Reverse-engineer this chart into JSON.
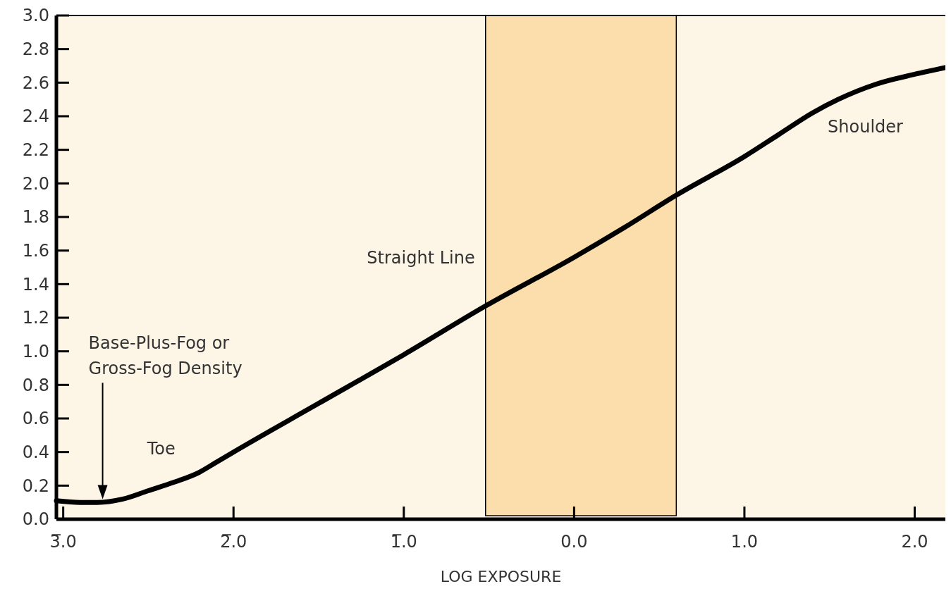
{
  "chart_data": {
    "type": "line",
    "xlabel": "LOG EXPOSURE",
    "x": [
      -3.04,
      -2.9,
      -2.8,
      -2.65,
      -2.5,
      -2.35,
      -2.2,
      -2.1,
      -2.0,
      -1.5,
      -1.0,
      -0.52,
      0.0,
      0.3,
      0.6,
      1.0,
      1.2,
      1.4,
      1.55,
      1.77,
      2.0,
      2.18
    ],
    "series": [
      {
        "color": "#000000",
        "values": [
          0.11,
          0.1,
          0.1,
          0.12,
          0.17,
          0.22,
          0.28,
          0.34,
          0.4,
          0.69,
          0.98,
          1.27,
          1.56,
          1.74,
          1.93,
          2.16,
          2.29,
          2.42,
          2.5,
          2.59,
          2.65,
          2.69
        ]
      }
    ],
    "xlim": [
      -3.04,
      2.18
    ],
    "ylim": [
      0,
      3
    ],
    "xticks": [
      {
        "value": -3,
        "label": "3̅.0"
      },
      {
        "value": -2,
        "label": "2̅.0"
      },
      {
        "value": -1,
        "label": "1̅.0"
      },
      {
        "value": 0,
        "label": "0.0"
      },
      {
        "value": 1,
        "label": "1.0"
      },
      {
        "value": 2,
        "label": "2.0"
      }
    ],
    "yticks": [
      {
        "value": 0,
        "label": "0.0"
      },
      0.2,
      0.4,
      0.6,
      0.8,
      {
        "value": 1,
        "label": "1.0"
      },
      1.2,
      1.4,
      1.6,
      1.8,
      {
        "value": 2,
        "label": "2.0"
      },
      2.2,
      2.4,
      2.6,
      2.8,
      {
        "value": 3,
        "label": "3.0"
      }
    ],
    "bands": [
      {
        "axis": "x",
        "from": -0.52,
        "to": 0.6,
        "color": "#fbdeab"
      }
    ],
    "annotations": [
      "Base-Plus-Fog or\nGross-Fog Density",
      "Toe",
      "Straight Line",
      "Shoulder"
    ],
    "grid": false,
    "marker": "none",
    "line_style": "solid"
  }
}
